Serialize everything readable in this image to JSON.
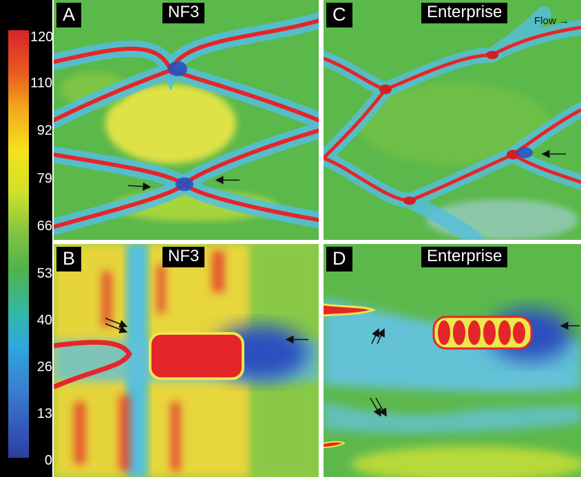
{
  "colorbar": {
    "ticks": [
      "120",
      "110",
      "92",
      "79",
      "66",
      "53",
      "40",
      "26",
      "13",
      "0"
    ]
  },
  "panels": {
    "a": {
      "letter": "A",
      "title": "NF3"
    },
    "b": {
      "letter": "B",
      "title": "NF3"
    },
    "c": {
      "letter": "C",
      "title": "Enterprise"
    },
    "d": {
      "letter": "D",
      "title": "Enterprise"
    }
  },
  "flow": {
    "label": "Flow →"
  },
  "colors": {
    "red": "#e4262a",
    "yellow": "#eee84a",
    "green": "#5bb84a",
    "cyan": "#55bfe0",
    "blue": "#2a50c0"
  }
}
